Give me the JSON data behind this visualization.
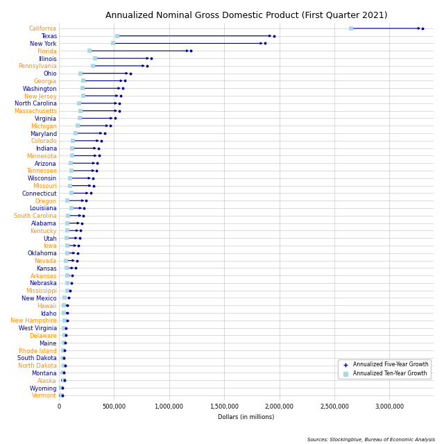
{
  "title": "Annualized Nominal Gross Domestic Product (First Quarter 2021)",
  "xlabel": "Dollars (in millions)",
  "source": "Sources: Stockingblue, Bureau of Economic Analysis",
  "states": [
    "California",
    "Texas",
    "New York",
    "Florida",
    "Illinois",
    "Pennsylvania",
    "Ohio",
    "Georgia",
    "Washington",
    "New Jersey",
    "North Carolina",
    "Massachusetts",
    "Virginia",
    "Michigan",
    "Maryland",
    "Colorado",
    "Indiana",
    "Minnesota",
    "Arizona",
    "Tennessee",
    "Wisconsin",
    "Missouri",
    "Connecticut",
    "Oregon",
    "Louisiana",
    "South Carolina",
    "Alabama",
    "Kentucky",
    "Utah",
    "Iowa",
    "Oklahoma",
    "Nevada",
    "Kansas",
    "Arkansas",
    "Nebraska",
    "Mississippi",
    "New Mexico",
    "Hawaii",
    "Idaho",
    "New Hampshire",
    "West Virginia",
    "Delaware",
    "Maine",
    "Rhode Island",
    "South Dakota",
    "North Dakota",
    "Montana",
    "Alaska",
    "Wyoming",
    "Vermont"
  ],
  "five_year": [
    3300000,
    1950000,
    1870000,
    1200000,
    840000,
    800000,
    650000,
    600000,
    580000,
    560000,
    550000,
    550000,
    510000,
    470000,
    415000,
    385000,
    360000,
    365000,
    350000,
    345000,
    310000,
    315000,
    290000,
    250000,
    230000,
    225000,
    210000,
    200000,
    190000,
    180000,
    170000,
    165000,
    155000,
    120000,
    115000,
    105000,
    92000,
    80000,
    76000,
    75000,
    68000,
    66000,
    56000,
    50000,
    49000,
    58000,
    48000,
    52000,
    36000,
    34000
  ],
  "ten_year": [
    2650000,
    530000,
    490000,
    280000,
    330000,
    310000,
    200000,
    220000,
    215000,
    220000,
    185000,
    200000,
    190000,
    175000,
    155000,
    130000,
    120000,
    120000,
    110000,
    115000,
    105000,
    100000,
    115000,
    80000,
    115000,
    85000,
    80000,
    80000,
    70000,
    80000,
    75000,
    65000,
    70000,
    75000,
    75000,
    80000,
    50000,
    48000,
    48000,
    50000,
    48000,
    50000,
    44000,
    40000,
    40000,
    48000,
    38000,
    44000,
    30000,
    28000
  ],
  "label_colors": [
    "#FF8C00",
    "#00008B",
    "#00008B",
    "#FF8C00",
    "#00008B",
    "#FF8C00",
    "#00008B",
    "#FF8C00",
    "#00008B",
    "#FF8C00",
    "#00008B",
    "#FF8C00",
    "#00008B",
    "#FF8C00",
    "#00008B",
    "#FF8C00",
    "#00008B",
    "#FF8C00",
    "#00008B",
    "#FF8C00",
    "#00008B",
    "#FF8C00",
    "#00008B",
    "#FF8C00",
    "#00008B",
    "#FF8C00",
    "#00008B",
    "#FF8C00",
    "#00008B",
    "#FF8C00",
    "#00008B",
    "#FF8C00",
    "#00008B",
    "#FF8C00",
    "#00008B",
    "#FF8C00",
    "#00008B",
    "#FF8C00",
    "#00008B",
    "#FF8C00",
    "#00008B",
    "#FF8C00",
    "#00008B",
    "#FF8C00",
    "#00008B",
    "#FF8C00",
    "#00008B",
    "#FF8C00",
    "#00008B",
    "#FF8C00"
  ],
  "dot_color": "#00008B",
  "square_color": "#ADD8E6",
  "line_color": "#00008B",
  "xlim": [
    0,
    3400000
  ],
  "title_fontsize": 9,
  "label_fontsize": 6,
  "tick_fontsize": 6
}
